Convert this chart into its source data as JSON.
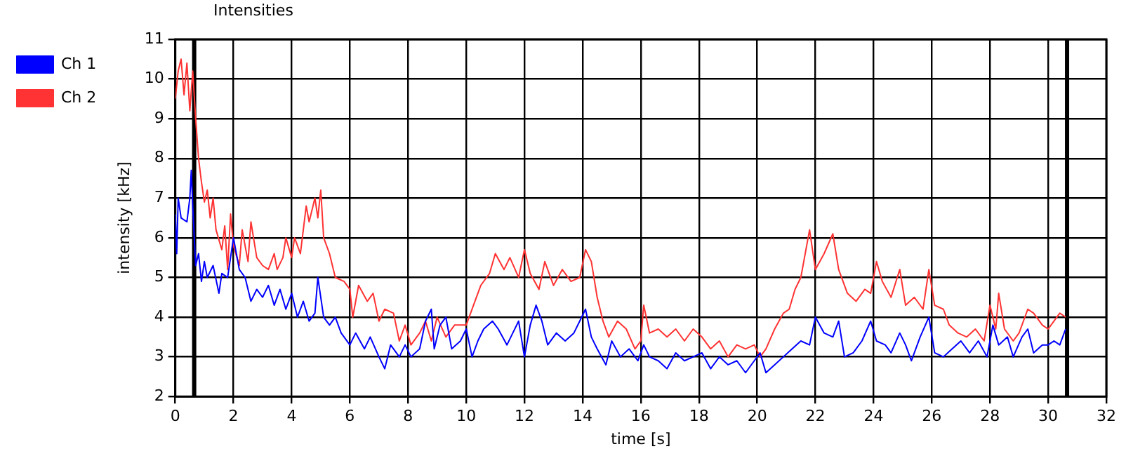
{
  "chart_data": {
    "type": "line",
    "title": "Intensities",
    "xlabel": "time [s]",
    "ylabel": "intensity [kHz]",
    "xlim": [
      0,
      32
    ],
    "xticks": [
      0,
      2,
      4,
      6,
      8,
      10,
      12,
      14,
      16,
      18,
      20,
      22,
      24,
      26,
      28,
      30,
      32
    ],
    "ylim": [
      2,
      11
    ],
    "yticks": [
      2,
      3,
      4,
      5,
      6,
      7,
      8,
      9,
      10,
      11
    ],
    "grid": true,
    "legend": "top left",
    "marker": "none",
    "line_style": "solid",
    "ref_lines": [
      {
        "axis": "x",
        "value": 0.65,
        "label": null,
        "color": "#000000"
      },
      {
        "axis": "x",
        "value": 30.65,
        "label": null,
        "color": "#000000"
      }
    ],
    "series": [
      {
        "name": "Ch 1",
        "color": "#0000ff",
        "x": [
          0,
          0.05,
          0.1,
          0.2,
          0.4,
          0.5,
          0.55,
          0.6,
          0.7,
          0.8,
          0.9,
          1.0,
          1.1,
          1.3,
          1.5,
          1.6,
          1.8,
          2.0,
          2.2,
          2.4,
          2.6,
          2.8,
          3.0,
          3.2,
          3.4,
          3.6,
          3.8,
          4.0,
          4.2,
          4.4,
          4.6,
          4.8,
          4.9,
          5.1,
          5.3,
          5.5,
          5.7,
          6.0,
          6.2,
          6.5,
          6.7,
          7.0,
          7.2,
          7.4,
          7.7,
          7.9,
          8.1,
          8.4,
          8.6,
          8.8,
          8.9,
          9.1,
          9.3,
          9.5,
          9.8,
          10.0,
          10.2,
          10.4,
          10.6,
          10.9,
          11.1,
          11.4,
          11.6,
          11.8,
          12.0,
          12.2,
          12.4,
          12.6,
          12.8,
          13.1,
          13.4,
          13.7,
          13.9,
          14.1,
          14.3,
          14.5,
          14.8,
          15.0,
          15.3,
          15.6,
          15.9,
          16.1,
          16.3,
          16.6,
          16.9,
          17.2,
          17.5,
          17.8,
          18.1,
          18.4,
          18.7,
          19.0,
          19.3,
          19.6,
          19.9,
          20.1,
          20.3,
          20.6,
          20.9,
          21.2,
          21.5,
          21.8,
          22.0,
          22.3,
          22.6,
          22.8,
          23.0,
          23.3,
          23.6,
          23.9,
          24.1,
          24.4,
          24.6,
          24.9,
          25.1,
          25.3,
          25.6,
          25.9,
          26.1,
          26.4,
          26.7,
          27.0,
          27.3,
          27.6,
          27.9,
          28.1,
          28.3,
          28.6,
          28.8,
          29.1,
          29.3,
          29.5,
          29.8,
          30.0,
          30.2,
          30.4,
          30.6
        ],
        "values": [
          6.6,
          5.6,
          7.0,
          6.5,
          6.4,
          7.0,
          7.7,
          6.8,
          5.3,
          5.6,
          4.9,
          5.4,
          5.0,
          5.3,
          4.6,
          5.1,
          5.0,
          6.0,
          5.2,
          5.0,
          4.4,
          4.7,
          4.5,
          4.8,
          4.3,
          4.7,
          4.2,
          4.6,
          4.0,
          4.4,
          3.9,
          4.1,
          5.0,
          4.0,
          3.8,
          4.0,
          3.6,
          3.3,
          3.6,
          3.2,
          3.5,
          3.0,
          2.7,
          3.3,
          3.0,
          3.3,
          3.0,
          3.2,
          3.9,
          4.2,
          3.2,
          3.8,
          4.0,
          3.2,
          3.4,
          3.7,
          3.0,
          3.4,
          3.7,
          3.9,
          3.7,
          3.3,
          3.6,
          3.9,
          3.0,
          3.8,
          4.3,
          3.9,
          3.3,
          3.6,
          3.4,
          3.6,
          3.9,
          4.2,
          3.5,
          3.2,
          2.8,
          3.4,
          3.0,
          3.2,
          2.9,
          3.3,
          3.0,
          2.9,
          2.7,
          3.1,
          2.9,
          3.0,
          3.1,
          2.7,
          3.0,
          2.8,
          2.9,
          2.6,
          2.9,
          3.1,
          2.6,
          2.8,
          3.0,
          3.2,
          3.4,
          3.3,
          4.0,
          3.6,
          3.5,
          3.9,
          3.0,
          3.1,
          3.4,
          3.9,
          3.4,
          3.3,
          3.1,
          3.6,
          3.3,
          2.9,
          3.5,
          4.0,
          3.1,
          3.0,
          3.2,
          3.4,
          3.1,
          3.4,
          3.0,
          3.8,
          3.3,
          3.5,
          3.0,
          3.5,
          3.7,
          3.1,
          3.3,
          3.3,
          3.4,
          3.3,
          3.7
        ]
      },
      {
        "name": "Ch 2",
        "color": "#ff3333",
        "x": [
          0,
          0.1,
          0.2,
          0.3,
          0.4,
          0.5,
          0.6,
          0.7,
          0.8,
          0.9,
          1.0,
          1.1,
          1.2,
          1.3,
          1.4,
          1.6,
          1.7,
          1.8,
          1.9,
          2.0,
          2.2,
          2.3,
          2.5,
          2.6,
          2.8,
          3.0,
          3.2,
          3.4,
          3.5,
          3.7,
          3.8,
          4.0,
          4.1,
          4.3,
          4.5,
          4.6,
          4.8,
          4.9,
          5.0,
          5.1,
          5.3,
          5.5,
          5.8,
          6.0,
          6.1,
          6.3,
          6.6,
          6.8,
          7.0,
          7.2,
          7.5,
          7.7,
          7.9,
          8.1,
          8.4,
          8.6,
          8.8,
          9.0,
          9.3,
          9.6,
          10.0,
          10.3,
          10.5,
          10.8,
          11.0,
          11.3,
          11.5,
          11.8,
          12.0,
          12.2,
          12.5,
          12.7,
          13.0,
          13.3,
          13.6,
          13.9,
          14.1,
          14.3,
          14.5,
          14.7,
          14.9,
          15.2,
          15.5,
          15.8,
          16.0,
          16.1,
          16.3,
          16.6,
          16.9,
          17.2,
          17.5,
          17.8,
          18.1,
          18.4,
          18.7,
          19.0,
          19.3,
          19.6,
          19.9,
          20.1,
          20.3,
          20.6,
          20.9,
          21.1,
          21.3,
          21.5,
          21.8,
          22.0,
          22.3,
          22.6,
          22.8,
          23.1,
          23.4,
          23.7,
          23.9,
          24.1,
          24.3,
          24.6,
          24.9,
          25.1,
          25.4,
          25.7,
          25.9,
          26.1,
          26.4,
          26.6,
          26.9,
          27.2,
          27.5,
          27.8,
          28.0,
          28.2,
          28.3,
          28.5,
          28.8,
          29.0,
          29.3,
          29.5,
          29.8,
          30.0,
          30.2,
          30.4,
          30.6
        ],
        "values": [
          9.5,
          10.2,
          10.5,
          9.6,
          10.4,
          9.2,
          10.2,
          9.0,
          8.0,
          7.4,
          6.9,
          7.2,
          6.5,
          7.0,
          6.2,
          5.7,
          6.3,
          5.2,
          6.6,
          5.8,
          5.3,
          6.2,
          5.4,
          6.4,
          5.5,
          5.3,
          5.2,
          5.6,
          5.2,
          5.5,
          6.0,
          5.5,
          6.0,
          5.6,
          6.8,
          6.4,
          7.0,
          6.5,
          7.2,
          6.0,
          5.6,
          5.0,
          4.9,
          4.7,
          4.0,
          4.8,
          4.4,
          4.6,
          3.9,
          4.2,
          4.1,
          3.4,
          3.8,
          3.3,
          3.6,
          3.9,
          3.4,
          4.0,
          3.5,
          3.8,
          3.8,
          4.4,
          4.8,
          5.1,
          5.6,
          5.2,
          5.5,
          5.0,
          5.7,
          5.1,
          4.7,
          5.4,
          4.8,
          5.2,
          4.9,
          5.0,
          5.7,
          5.4,
          4.5,
          3.9,
          3.5,
          3.9,
          3.7,
          3.2,
          3.4,
          4.3,
          3.6,
          3.7,
          3.5,
          3.7,
          3.4,
          3.7,
          3.5,
          3.2,
          3.4,
          3.0,
          3.3,
          3.2,
          3.3,
          3.0,
          3.2,
          3.7,
          4.1,
          4.2,
          4.7,
          5.0,
          6.2,
          5.2,
          5.6,
          6.1,
          5.2,
          4.6,
          4.4,
          4.7,
          4.6,
          5.4,
          4.9,
          4.5,
          5.2,
          4.3,
          4.5,
          4.2,
          5.2,
          4.3,
          4.2,
          3.8,
          3.6,
          3.5,
          3.7,
          3.4,
          4.3,
          3.7,
          4.6,
          3.7,
          3.4,
          3.6,
          4.2,
          4.1,
          3.8,
          3.7,
          3.9,
          4.1,
          4.0
        ]
      }
    ]
  }
}
